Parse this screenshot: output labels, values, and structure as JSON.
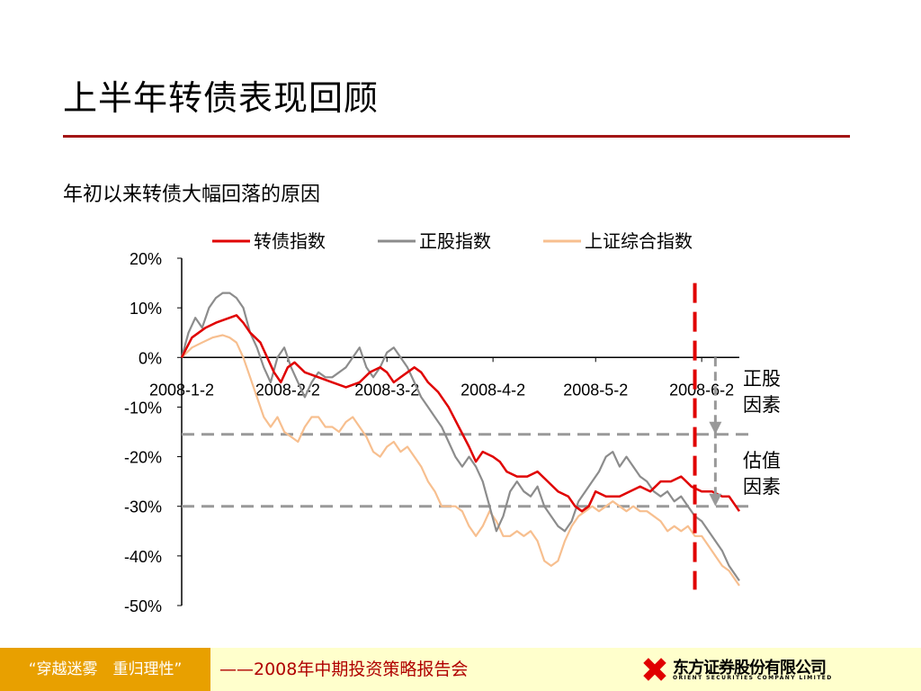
{
  "page": {
    "title": "上半年转债表现回顾",
    "subtitle": "年初以来转债大幅回落的原因"
  },
  "chart_data": {
    "type": "line",
    "ylim": [
      -0.5,
      0.2
    ],
    "yticks": [
      "20%",
      "10%",
      "0%",
      "-10%",
      "-20%",
      "-30%",
      "-40%",
      "-50%"
    ],
    "ytick_values": [
      0.2,
      0.1,
      0.0,
      -0.1,
      -0.2,
      -0.3,
      -0.4,
      -0.5
    ],
    "xticks": [
      "2008-1-2",
      "2008-2-2",
      "2008-3-2",
      "2008-4-2",
      "2008-5-2",
      "2008-6-2"
    ],
    "xtick_positions": [
      0,
      31,
      60,
      91,
      121,
      152
    ],
    "xlim": [
      0,
      163
    ],
    "legend_position": "top",
    "series": [
      {
        "name": "转债指数",
        "color": "#e00000",
        "points": [
          [
            0,
            0.0
          ],
          [
            3,
            0.04
          ],
          [
            7,
            0.06
          ],
          [
            10,
            0.07
          ],
          [
            12,
            0.075
          ],
          [
            14,
            0.08
          ],
          [
            16,
            0.085
          ],
          [
            18,
            0.07
          ],
          [
            20,
            0.05
          ],
          [
            23,
            0.03
          ],
          [
            25,
            0.0
          ],
          [
            27,
            -0.03
          ],
          [
            29,
            -0.05
          ],
          [
            31,
            -0.02
          ],
          [
            33,
            -0.01
          ],
          [
            36,
            -0.03
          ],
          [
            40,
            -0.04
          ],
          [
            44,
            -0.05
          ],
          [
            48,
            -0.06
          ],
          [
            52,
            -0.05
          ],
          [
            55,
            -0.03
          ],
          [
            58,
            -0.02
          ],
          [
            60,
            -0.03
          ],
          [
            62,
            -0.05
          ],
          [
            64,
            -0.04
          ],
          [
            66,
            -0.03
          ],
          [
            68,
            -0.02
          ],
          [
            70,
            -0.03
          ],
          [
            72,
            -0.05
          ],
          [
            75,
            -0.07
          ],
          [
            78,
            -0.1
          ],
          [
            81,
            -0.14
          ],
          [
            84,
            -0.18
          ],
          [
            86,
            -0.21
          ],
          [
            88,
            -0.19
          ],
          [
            91,
            -0.2
          ],
          [
            93,
            -0.21
          ],
          [
            95,
            -0.23
          ],
          [
            98,
            -0.24
          ],
          [
            101,
            -0.24
          ],
          [
            104,
            -0.23
          ],
          [
            107,
            -0.25
          ],
          [
            110,
            -0.27
          ],
          [
            113,
            -0.28
          ],
          [
            115,
            -0.3
          ],
          [
            117,
            -0.31
          ],
          [
            119,
            -0.3
          ],
          [
            121,
            -0.27
          ],
          [
            124,
            -0.28
          ],
          [
            128,
            -0.28
          ],
          [
            131,
            -0.27
          ],
          [
            134,
            -0.26
          ],
          [
            137,
            -0.27
          ],
          [
            140,
            -0.25
          ],
          [
            143,
            -0.25
          ],
          [
            146,
            -0.24
          ],
          [
            149,
            -0.26
          ],
          [
            152,
            -0.27
          ],
          [
            155,
            -0.27
          ],
          [
            158,
            -0.28
          ],
          [
            160,
            -0.28
          ],
          [
            162,
            -0.3
          ],
          [
            163,
            -0.31
          ]
        ]
      },
      {
        "name": "正股指数",
        "color": "#8c8c8c",
        "points": [
          [
            0,
            0.0
          ],
          [
            2,
            0.05
          ],
          [
            4,
            0.08
          ],
          [
            6,
            0.06
          ],
          [
            8,
            0.1
          ],
          [
            10,
            0.12
          ],
          [
            12,
            0.13
          ],
          [
            14,
            0.13
          ],
          [
            16,
            0.12
          ],
          [
            18,
            0.1
          ],
          [
            20,
            0.05
          ],
          [
            22,
            0.02
          ],
          [
            24,
            -0.02
          ],
          [
            26,
            -0.05
          ],
          [
            28,
            0.0
          ],
          [
            30,
            0.02
          ],
          [
            32,
            -0.02
          ],
          [
            34,
            -0.05
          ],
          [
            36,
            -0.08
          ],
          [
            38,
            -0.05
          ],
          [
            40,
            -0.03
          ],
          [
            42,
            -0.04
          ],
          [
            44,
            -0.04
          ],
          [
            46,
            -0.03
          ],
          [
            48,
            -0.02
          ],
          [
            50,
            0.0
          ],
          [
            52,
            0.02
          ],
          [
            54,
            -0.02
          ],
          [
            56,
            -0.04
          ],
          [
            58,
            -0.02
          ],
          [
            60,
            0.01
          ],
          [
            62,
            0.02
          ],
          [
            64,
            0.0
          ],
          [
            66,
            -0.02
          ],
          [
            68,
            -0.05
          ],
          [
            70,
            -0.08
          ],
          [
            72,
            -0.1
          ],
          [
            74,
            -0.12
          ],
          [
            76,
            -0.14
          ],
          [
            78,
            -0.17
          ],
          [
            80,
            -0.2
          ],
          [
            82,
            -0.22
          ],
          [
            84,
            -0.2
          ],
          [
            86,
            -0.22
          ],
          [
            88,
            -0.25
          ],
          [
            90,
            -0.3
          ],
          [
            92,
            -0.35
          ],
          [
            94,
            -0.32
          ],
          [
            96,
            -0.27
          ],
          [
            98,
            -0.25
          ],
          [
            100,
            -0.27
          ],
          [
            102,
            -0.28
          ],
          [
            104,
            -0.26
          ],
          [
            106,
            -0.3
          ],
          [
            108,
            -0.32
          ],
          [
            110,
            -0.34
          ],
          [
            112,
            -0.35
          ],
          [
            114,
            -0.33
          ],
          [
            116,
            -0.29
          ],
          [
            118,
            -0.27
          ],
          [
            120,
            -0.25
          ],
          [
            122,
            -0.23
          ],
          [
            124,
            -0.2
          ],
          [
            126,
            -0.19
          ],
          [
            128,
            -0.22
          ],
          [
            130,
            -0.2
          ],
          [
            132,
            -0.22
          ],
          [
            134,
            -0.24
          ],
          [
            136,
            -0.25
          ],
          [
            138,
            -0.27
          ],
          [
            140,
            -0.28
          ],
          [
            142,
            -0.27
          ],
          [
            144,
            -0.29
          ],
          [
            146,
            -0.28
          ],
          [
            148,
            -0.3
          ],
          [
            150,
            -0.32
          ],
          [
            152,
            -0.33
          ],
          [
            154,
            -0.35
          ],
          [
            156,
            -0.37
          ],
          [
            158,
            -0.39
          ],
          [
            160,
            -0.42
          ],
          [
            162,
            -0.44
          ],
          [
            163,
            -0.45
          ]
        ]
      },
      {
        "name": "上证综合指数",
        "color": "#f7bf8f",
        "points": [
          [
            0,
            0.0
          ],
          [
            3,
            0.02
          ],
          [
            6,
            0.03
          ],
          [
            9,
            0.04
          ],
          [
            12,
            0.045
          ],
          [
            14,
            0.04
          ],
          [
            16,
            0.03
          ],
          [
            18,
            0.0
          ],
          [
            20,
            -0.04
          ],
          [
            22,
            -0.08
          ],
          [
            24,
            -0.12
          ],
          [
            26,
            -0.14
          ],
          [
            28,
            -0.12
          ],
          [
            30,
            -0.15
          ],
          [
            32,
            -0.16
          ],
          [
            34,
            -0.17
          ],
          [
            36,
            -0.14
          ],
          [
            38,
            -0.12
          ],
          [
            40,
            -0.12
          ],
          [
            42,
            -0.14
          ],
          [
            44,
            -0.14
          ],
          [
            46,
            -0.15
          ],
          [
            48,
            -0.13
          ],
          [
            50,
            -0.12
          ],
          [
            52,
            -0.14
          ],
          [
            54,
            -0.16
          ],
          [
            56,
            -0.19
          ],
          [
            58,
            -0.2
          ],
          [
            60,
            -0.18
          ],
          [
            62,
            -0.17
          ],
          [
            64,
            -0.19
          ],
          [
            66,
            -0.18
          ],
          [
            68,
            -0.2
          ],
          [
            70,
            -0.22
          ],
          [
            72,
            -0.25
          ],
          [
            74,
            -0.27
          ],
          [
            76,
            -0.3
          ],
          [
            78,
            -0.3
          ],
          [
            80,
            -0.3
          ],
          [
            82,
            -0.31
          ],
          [
            84,
            -0.34
          ],
          [
            86,
            -0.36
          ],
          [
            88,
            -0.34
          ],
          [
            90,
            -0.31
          ],
          [
            92,
            -0.33
          ],
          [
            94,
            -0.36
          ],
          [
            96,
            -0.36
          ],
          [
            98,
            -0.35
          ],
          [
            100,
            -0.36
          ],
          [
            102,
            -0.35
          ],
          [
            104,
            -0.37
          ],
          [
            106,
            -0.41
          ],
          [
            108,
            -0.42
          ],
          [
            110,
            -0.41
          ],
          [
            112,
            -0.37
          ],
          [
            114,
            -0.34
          ],
          [
            116,
            -0.32
          ],
          [
            118,
            -0.31
          ],
          [
            120,
            -0.3
          ],
          [
            122,
            -0.31
          ],
          [
            124,
            -0.3
          ],
          [
            126,
            -0.29
          ],
          [
            128,
            -0.3
          ],
          [
            130,
            -0.31
          ],
          [
            132,
            -0.3
          ],
          [
            134,
            -0.31
          ],
          [
            136,
            -0.31
          ],
          [
            138,
            -0.32
          ],
          [
            140,
            -0.33
          ],
          [
            142,
            -0.35
          ],
          [
            144,
            -0.34
          ],
          [
            146,
            -0.35
          ],
          [
            148,
            -0.34
          ],
          [
            150,
            -0.36
          ],
          [
            152,
            -0.36
          ],
          [
            154,
            -0.38
          ],
          [
            156,
            -0.4
          ],
          [
            158,
            -0.42
          ],
          [
            160,
            -0.43
          ],
          [
            162,
            -0.45
          ],
          [
            163,
            -0.46
          ]
        ]
      }
    ],
    "reference_lines": [
      {
        "y": -0.155,
        "color": "#999999",
        "style": "dashed"
      },
      {
        "y": -0.3,
        "color": "#999999",
        "style": "dashed"
      }
    ],
    "marker_line": {
      "x": 150,
      "y_from": 0.15,
      "y_to": -0.45,
      "color": "#e00000",
      "style": "dashed"
    },
    "bracket": {
      "x": 156,
      "y_from": 0.0,
      "y_to": -0.3,
      "color": "#999999"
    },
    "annotations": [
      {
        "lines": [
          "正股",
          "因素"
        ],
        "y_center": -0.065
      },
      {
        "lines": [
          "估值",
          "因素"
        ],
        "y_center": -0.23
      }
    ]
  },
  "footer": {
    "slogan": "“穿越迷雾　重归理性”",
    "conference": "——2008年中期投资策略报告会",
    "logo_cn": "东方证券股份有限公司",
    "logo_en": "ORIENT SECURITIES COMPANY LIMITED",
    "logo_color": "#e00000"
  }
}
